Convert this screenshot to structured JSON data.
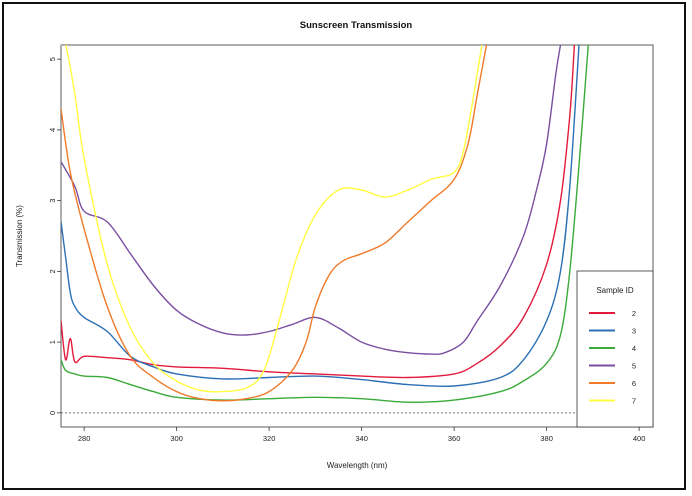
{
  "chart_data": {
    "type": "line",
    "title": "Sunscreen Transmission",
    "xlabel": "Wavelength (nm)",
    "ylabel": "Transmission (%)",
    "xlim": [
      275,
      403
    ],
    "ylim": [
      -0.2,
      5.2
    ],
    "xticks": [
      280,
      300,
      320,
      340,
      360,
      380,
      400
    ],
    "yticks": [
      0,
      1,
      2,
      3,
      4,
      5
    ],
    "baseline": 0,
    "legend": {
      "title": "Sample ID",
      "placement": "bottom-right"
    },
    "series": [
      {
        "name": "2",
        "color": "#e31a3c",
        "points": [
          [
            275,
            1.3
          ],
          [
            276,
            0.75
          ],
          [
            277,
            1.05
          ],
          [
            278,
            0.72
          ],
          [
            280,
            0.8
          ],
          [
            285,
            0.78
          ],
          [
            290,
            0.75
          ],
          [
            295,
            0.68
          ],
          [
            300,
            0.65
          ],
          [
            310,
            0.63
          ],
          [
            320,
            0.58
          ],
          [
            330,
            0.55
          ],
          [
            340,
            0.52
          ],
          [
            350,
            0.5
          ],
          [
            360,
            0.55
          ],
          [
            365,
            0.7
          ],
          [
            370,
            0.95
          ],
          [
            375,
            1.35
          ],
          [
            380,
            2.1
          ],
          [
            383,
            3.0
          ],
          [
            385,
            4.2
          ],
          [
            386,
            5.2
          ]
        ]
      },
      {
        "name": "3",
        "color": "#2c6fb5",
        "points": [
          [
            275,
            2.7
          ],
          [
            276,
            2.2
          ],
          [
            277,
            1.7
          ],
          [
            278,
            1.5
          ],
          [
            280,
            1.35
          ],
          [
            285,
            1.15
          ],
          [
            290,
            0.8
          ],
          [
            295,
            0.65
          ],
          [
            300,
            0.55
          ],
          [
            310,
            0.48
          ],
          [
            320,
            0.5
          ],
          [
            330,
            0.52
          ],
          [
            340,
            0.47
          ],
          [
            350,
            0.4
          ],
          [
            360,
            0.38
          ],
          [
            370,
            0.5
          ],
          [
            375,
            0.75
          ],
          [
            380,
            1.3
          ],
          [
            383,
            2.0
          ],
          [
            385,
            3.2
          ],
          [
            387,
            5.2
          ]
        ]
      },
      {
        "name": "4",
        "color": "#3aaa3a",
        "points": [
          [
            275,
            0.75
          ],
          [
            276,
            0.6
          ],
          [
            278,
            0.55
          ],
          [
            280,
            0.52
          ],
          [
            285,
            0.5
          ],
          [
            290,
            0.4
          ],
          [
            295,
            0.3
          ],
          [
            300,
            0.22
          ],
          [
            310,
            0.18
          ],
          [
            320,
            0.2
          ],
          [
            330,
            0.22
          ],
          [
            340,
            0.2
          ],
          [
            350,
            0.15
          ],
          [
            360,
            0.18
          ],
          [
            370,
            0.3
          ],
          [
            375,
            0.45
          ],
          [
            380,
            0.7
          ],
          [
            383,
            1.1
          ],
          [
            385,
            2.0
          ],
          [
            387,
            3.5
          ],
          [
            389,
            5.2
          ]
        ]
      },
      {
        "name": "5",
        "color": "#7a4fa0",
        "points": [
          [
            275,
            3.55
          ],
          [
            278,
            3.2
          ],
          [
            280,
            2.85
          ],
          [
            285,
            2.7
          ],
          [
            290,
            2.25
          ],
          [
            295,
            1.8
          ],
          [
            300,
            1.45
          ],
          [
            305,
            1.25
          ],
          [
            310,
            1.13
          ],
          [
            315,
            1.1
          ],
          [
            320,
            1.15
          ],
          [
            325,
            1.25
          ],
          [
            330,
            1.35
          ],
          [
            335,
            1.2
          ],
          [
            340,
            1.0
          ],
          [
            345,
            0.9
          ],
          [
            350,
            0.85
          ],
          [
            355,
            0.83
          ],
          [
            358,
            0.85
          ],
          [
            362,
            1.0
          ],
          [
            365,
            1.3
          ],
          [
            370,
            1.8
          ],
          [
            375,
            2.5
          ],
          [
            378,
            3.2
          ],
          [
            380,
            3.8
          ],
          [
            382,
            4.8
          ],
          [
            383,
            5.2
          ]
        ]
      },
      {
        "name": "6",
        "color": "#f07a28",
        "points": [
          [
            275,
            4.3
          ],
          [
            277,
            3.4
          ],
          [
            280,
            2.6
          ],
          [
            285,
            1.5
          ],
          [
            290,
            0.8
          ],
          [
            295,
            0.5
          ],
          [
            300,
            0.3
          ],
          [
            305,
            0.2
          ],
          [
            310,
            0.17
          ],
          [
            315,
            0.2
          ],
          [
            320,
            0.3
          ],
          [
            325,
            0.6
          ],
          [
            328,
            1.0
          ],
          [
            330,
            1.5
          ],
          [
            333,
            1.95
          ],
          [
            336,
            2.15
          ],
          [
            340,
            2.25
          ],
          [
            345,
            2.4
          ],
          [
            350,
            2.7
          ],
          [
            355,
            3.0
          ],
          [
            360,
            3.3
          ],
          [
            363,
            3.8
          ],
          [
            365,
            4.5
          ],
          [
            367,
            5.2
          ]
        ]
      },
      {
        "name": "7",
        "color": "#ffff40",
        "points": [
          [
            275,
            5.2
          ],
          [
            276,
            5.2
          ],
          [
            278,
            4.5
          ],
          [
            280,
            3.6
          ],
          [
            285,
            2.1
          ],
          [
            290,
            1.2
          ],
          [
            295,
            0.7
          ],
          [
            300,
            0.45
          ],
          [
            305,
            0.32
          ],
          [
            310,
            0.3
          ],
          [
            315,
            0.35
          ],
          [
            318,
            0.5
          ],
          [
            320,
            0.8
          ],
          [
            323,
            1.5
          ],
          [
            326,
            2.2
          ],
          [
            330,
            2.8
          ],
          [
            335,
            3.15
          ],
          [
            340,
            3.15
          ],
          [
            345,
            3.05
          ],
          [
            350,
            3.15
          ],
          [
            355,
            3.3
          ],
          [
            360,
            3.4
          ],
          [
            362,
            3.7
          ],
          [
            364,
            4.4
          ],
          [
            366,
            5.2
          ]
        ]
      }
    ]
  }
}
